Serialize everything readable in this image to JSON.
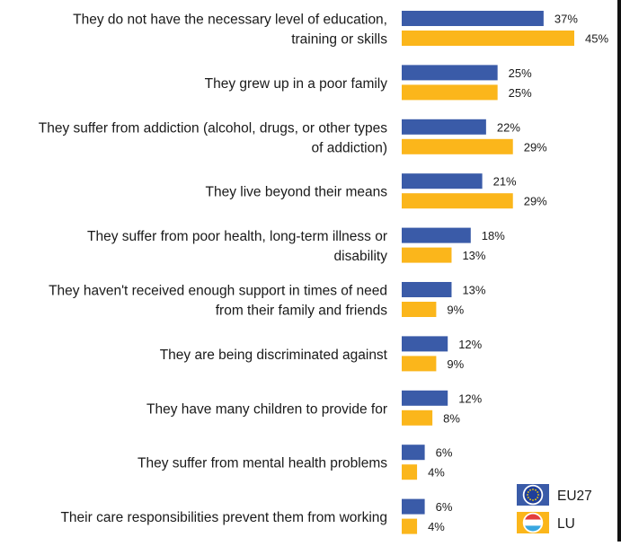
{
  "chart_data": {
    "type": "bar",
    "orientation": "horizontal",
    "categories": [
      [
        "They do not have the necessary level of education,",
        "training or skills"
      ],
      [
        "They grew up in a poor family"
      ],
      [
        "They suffer from addiction (alcohol, drugs, or other types",
        "of addiction)"
      ],
      [
        "They live beyond their means"
      ],
      [
        "They suffer from poor health, long-term illness or",
        "disability"
      ],
      [
        "They haven't received enough support in times of need",
        "from their family and friends"
      ],
      [
        "They are being discriminated against"
      ],
      [
        "They have many children to provide for"
      ],
      [
        "They suffer from mental health problems"
      ],
      [
        "Their care responsibilities prevent them from working"
      ]
    ],
    "series": [
      {
        "name": "EU27",
        "color": "#3a5ba8",
        "values": [
          37,
          25,
          22,
          21,
          18,
          13,
          12,
          12,
          6,
          6
        ],
        "labels": [
          "37%",
          "25%",
          "22%",
          "21%",
          "18%",
          "13%",
          "12%",
          "12%",
          "6%",
          "6%"
        ]
      },
      {
        "name": "LU",
        "color": "#fbb61b",
        "values": [
          45,
          25,
          29,
          29,
          13,
          9,
          9,
          8,
          4,
          4
        ],
        "labels": [
          "45%",
          "25%",
          "29%",
          "29%",
          "13%",
          "9%",
          "9%",
          "8%",
          "4%",
          "4%"
        ]
      }
    ],
    "xlim": [
      0,
      45
    ],
    "grid": false,
    "legend_position": "bottom-right",
    "legend": [
      {
        "name": "EU27",
        "flag": "eu-flag-icon"
      },
      {
        "name": "LU",
        "flag": "luxembourg-flag-icon"
      }
    ]
  }
}
